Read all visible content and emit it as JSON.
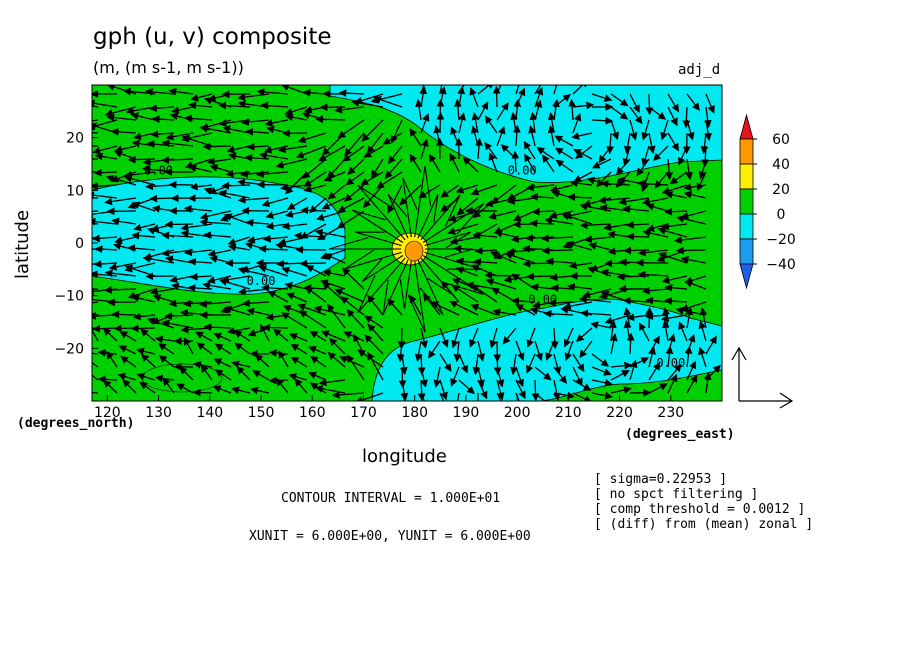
{
  "chart_data": {
    "type": "heatmap",
    "title": "gph (u, v) composite",
    "units": "(m, (m s-1, m s-1))",
    "tag": "adj_d",
    "xlabel": "longitude",
    "ylabel": "latitude",
    "x_unit_label": "(degrees_east)",
    "y_unit_label": "(degrees_north)",
    "xlim": [
      117,
      240
    ],
    "ylim": [
      -30,
      30
    ],
    "x_ticks": [
      120,
      130,
      140,
      150,
      160,
      170,
      180,
      190,
      200,
      210,
      220,
      230
    ],
    "y_ticks": [
      20,
      10,
      0,
      -10,
      -20
    ],
    "contour_labels": [
      "0.00",
      "0.00",
      "0.00",
      "0.00",
      "0.00"
    ],
    "colorbar": {
      "levels": [
        60,
        40,
        20,
        0,
        -20,
        -40
      ],
      "labels": [
        "60",
        "40",
        "20",
        "0",
        "−20",
        "−40"
      ],
      "colors": [
        "#e8101c",
        "#ff9900",
        "#ffee00",
        "#00d000",
        "#00e8f0",
        "#1a9cf0",
        "#1e5fe6"
      ]
    },
    "field_colors": {
      "positive": "#00d000",
      "negative": "#00e8f0",
      "core_high": "#ffee00",
      "core_higher": "#ff9900"
    },
    "info_lines": [
      "[ sigma=0.22953 ]",
      "[ no spct filtering ]",
      "[ comp threshold = 0.0012 ]",
      "[ (diff) from (mean) zonal ]"
    ],
    "contour_interval": "CONTOUR INTERVAL = 1.000E+01",
    "vector_units": "XUNIT = 6.000E+00, YUNIT = 6.000E+00"
  }
}
